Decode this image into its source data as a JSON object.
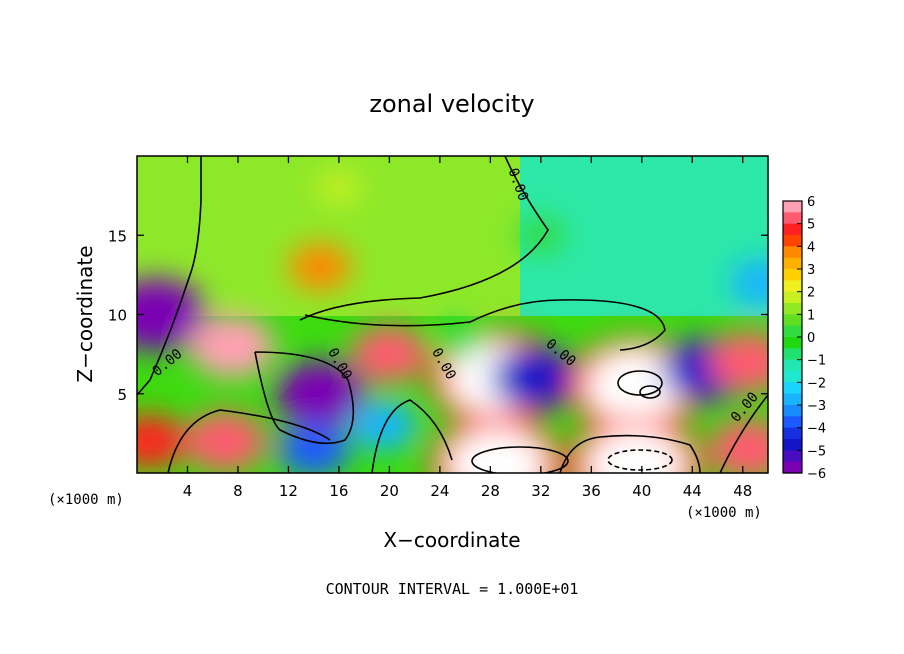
{
  "chart_data": {
    "type": "heatmap",
    "title": "zonal velocity",
    "xlabel": "X−coordinate",
    "ylabel": "Z−coordinate",
    "x_unit_left": "(×1000 m)",
    "x_unit_right": "(×1000 m)",
    "xlim": [
      0,
      50
    ],
    "ylim": [
      0,
      20
    ],
    "x_ticks": [
      4,
      8,
      12,
      16,
      20,
      24,
      28,
      32,
      36,
      40,
      44,
      48
    ],
    "x_tick_labels": [
      "4",
      "8",
      "12",
      "16",
      "20",
      "24",
      "28",
      "32",
      "36",
      "40",
      "44",
      "48"
    ],
    "y_ticks": [
      5,
      10,
      15
    ],
    "y_tick_labels": [
      "5",
      "10",
      "15"
    ],
    "colorbar": {
      "min": -6,
      "max": 6,
      "tick_labels": [
        "6",
        "5",
        "4",
        "3",
        "2",
        "1",
        "0",
        "−1",
        "−2",
        "−3",
        "−4",
        "−5",
        "−6"
      ]
    },
    "contour_label": "0.00",
    "footer": "CONTOUR INTERVAL = 1.000E+01",
    "features": [
      {
        "x": 1.5,
        "z": 10,
        "value": -7
      },
      {
        "x": 7.5,
        "z": 8,
        "value": 5.5
      },
      {
        "x": 7.0,
        "z": 2,
        "value": 5
      },
      {
        "x": 1.0,
        "z": 2,
        "value": 4
      },
      {
        "x": 14.5,
        "z": 5,
        "value": -6
      },
      {
        "x": 14.0,
        "z": 1.5,
        "value": -4
      },
      {
        "x": 14.5,
        "z": 13,
        "value": 3
      },
      {
        "x": 20.0,
        "z": 7.5,
        "value": 4.5
      },
      {
        "x": 19.5,
        "z": 3,
        "value": -3.5
      },
      {
        "x": 28.5,
        "z": 6,
        "value": 7
      },
      {
        "x": 31.5,
        "z": 6,
        "value": -5.5
      },
      {
        "x": 28.5,
        "z": 0.5,
        "value": 7
      },
      {
        "x": 39.5,
        "z": 5.5,
        "value": 7
      },
      {
        "x": 39.5,
        "z": 0.5,
        "value": 7
      },
      {
        "x": 45.0,
        "z": 6.5,
        "value": -5.5
      },
      {
        "x": 48.5,
        "z": 7,
        "value": 5
      },
      {
        "x": 48.5,
        "z": 1.5,
        "value": 5
      },
      {
        "x": 49.5,
        "z": 12,
        "value": -3
      },
      {
        "x": 32.0,
        "z": 15,
        "value": -1.5
      },
      {
        "x": 25.5,
        "z": 8.5,
        "value": -1.5
      },
      {
        "x": 16.0,
        "z": 18,
        "value": 1
      }
    ]
  }
}
